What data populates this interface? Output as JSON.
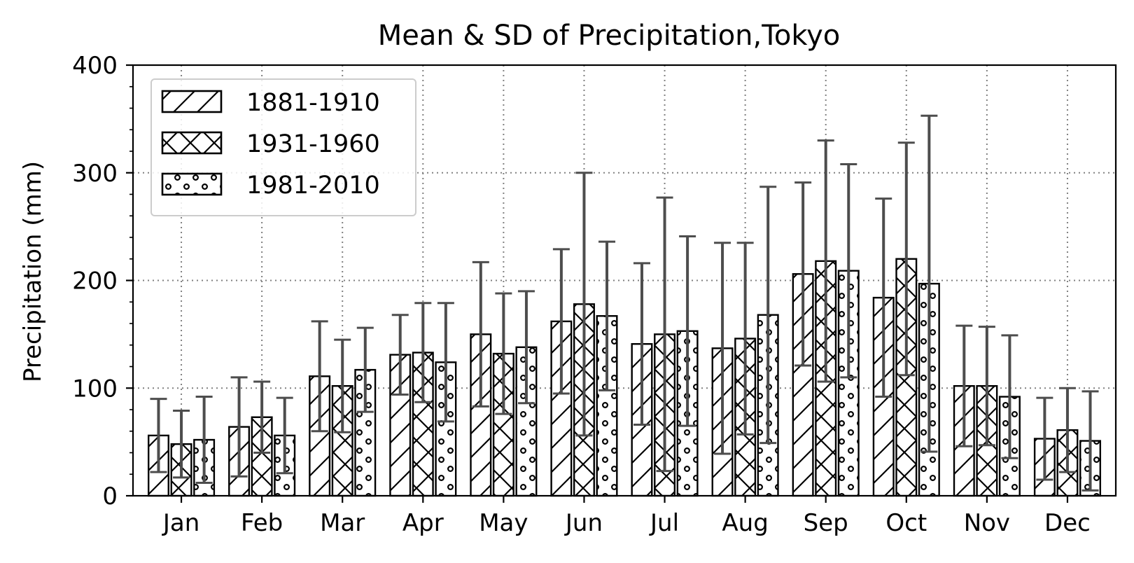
{
  "chart_data": {
    "type": "bar",
    "title": "Mean & SD of Precipitation,Tokyo",
    "xlabel": "",
    "ylabel": "Precipitation (mm)",
    "ylim": [
      0,
      400
    ],
    "yticks": [
      "0",
      "100",
      "200",
      "300",
      "400"
    ],
    "grid": true,
    "legend_position": "top-left",
    "categories": [
      "Jan",
      "Feb",
      "Mar",
      "Apr",
      "May",
      "Jun",
      "Jul",
      "Aug",
      "Sep",
      "Oct",
      "Nov",
      "Dec"
    ],
    "series": [
      {
        "name": "1881-1910",
        "hatch": "diagonal",
        "values": [
          56,
          64,
          111,
          131,
          150,
          162,
          141,
          137,
          206,
          184,
          102,
          53
        ],
        "sd": [
          34,
          46,
          51,
          37,
          67,
          67,
          75,
          98,
          85,
          92,
          56,
          38
        ]
      },
      {
        "name": "1931-1960",
        "hatch": "cross",
        "values": [
          48,
          73,
          102,
          133,
          132,
          178,
          150,
          146,
          218,
          220,
          102,
          61
        ],
        "sd": [
          31,
          33,
          43,
          46,
          56,
          122,
          127,
          89,
          112,
          108,
          55,
          39
        ]
      },
      {
        "name": "1981-2010",
        "hatch": "dots",
        "values": [
          52,
          56,
          117,
          124,
          138,
          167,
          153,
          168,
          209,
          197,
          92,
          51
        ],
        "sd": [
          40,
          35,
          39,
          55,
          52,
          69,
          88,
          119,
          99,
          156,
          57,
          46
        ]
      }
    ],
    "colors": {
      "bar_edge": "#000000",
      "bar_fill": "#ffffff",
      "errorbar": "#4d4d4d",
      "grid": "#808080"
    }
  }
}
